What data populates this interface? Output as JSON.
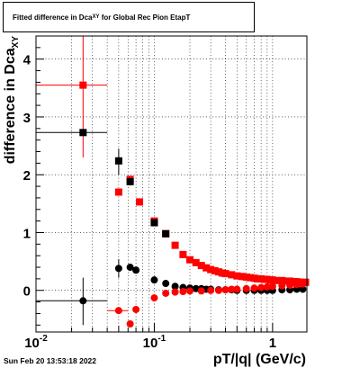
{
  "chart_data": {
    "type": "scatter",
    "title": {
      "main": "Fitted difference in Dca",
      "sub": "XY",
      "rest": " for Global Rec Pion EtapT"
    },
    "xlabel": "pT/|q| (GeV/c)",
    "ylabel": {
      "main": "difference in Dca",
      "sub": "XY"
    },
    "xscale": "log",
    "xlim": [
      0.01,
      1.95
    ],
    "ylim": [
      -0.72,
      4.4
    ],
    "x_ticks": [
      {
        "value": 0.01,
        "label": "10",
        "exp": "-2"
      },
      {
        "value": 0.1,
        "label": "10",
        "exp": "-1"
      },
      {
        "value": 1,
        "label": "1",
        "exp": ""
      }
    ],
    "y_ticks": [
      {
        "value": 0,
        "label": "0"
      },
      {
        "value": 1,
        "label": "1"
      },
      {
        "value": 2,
        "label": "2"
      },
      {
        "value": 3,
        "label": "3"
      },
      {
        "value": 4,
        "label": "4"
      }
    ],
    "grid": true,
    "series": [
      {
        "color": "#ff0000",
        "marker": "square",
        "points": [
          {
            "x": 0.025,
            "y": 3.55,
            "xlo": 0.01,
            "xhi": 0.04,
            "ylo": 2.3,
            "yhi": 4.4
          },
          {
            "x": 0.05,
            "y": 1.7
          },
          {
            "x": 0.0625,
            "y": 1.92
          },
          {
            "x": 0.075,
            "y": 1.53
          },
          {
            "x": 0.1,
            "y": 1.2
          },
          {
            "x": 0.125,
            "y": 0.98
          },
          {
            "x": 0.15,
            "y": 0.78
          },
          {
            "x": 0.175,
            "y": 0.62
          },
          {
            "x": 0.2,
            "y": 0.53
          },
          {
            "x": 0.225,
            "y": 0.48
          },
          {
            "x": 0.25,
            "y": 0.43
          },
          {
            "x": 0.275,
            "y": 0.39
          },
          {
            "x": 0.3,
            "y": 0.36
          },
          {
            "x": 0.325,
            "y": 0.34
          },
          {
            "x": 0.35,
            "y": 0.32
          },
          {
            "x": 0.375,
            "y": 0.3
          },
          {
            "x": 0.4,
            "y": 0.29
          },
          {
            "x": 0.45,
            "y": 0.27
          },
          {
            "x": 0.5,
            "y": 0.25
          },
          {
            "x": 0.55,
            "y": 0.24
          },
          {
            "x": 0.6,
            "y": 0.23
          },
          {
            "x": 0.65,
            "y": 0.22
          },
          {
            "x": 0.7,
            "y": 0.21
          },
          {
            "x": 0.75,
            "y": 0.2
          },
          {
            "x": 0.8,
            "y": 0.2
          },
          {
            "x": 0.85,
            "y": 0.19
          },
          {
            "x": 0.9,
            "y": 0.19
          },
          {
            "x": 0.95,
            "y": 0.18
          },
          {
            "x": 1.0,
            "y": 0.18
          },
          {
            "x": 1.1,
            "y": 0.17
          },
          {
            "x": 1.2,
            "y": 0.17
          },
          {
            "x": 1.3,
            "y": 0.16
          },
          {
            "x": 1.4,
            "y": 0.16
          },
          {
            "x": 1.5,
            "y": 0.15
          },
          {
            "x": 1.6,
            "y": 0.15
          },
          {
            "x": 1.7,
            "y": 0.14
          },
          {
            "x": 1.8,
            "y": 0.14
          },
          {
            "x": 1.9,
            "y": 0.14
          }
        ]
      },
      {
        "color": "#000000",
        "marker": "square",
        "points": [
          {
            "x": 0.025,
            "y": 2.73,
            "xlo": 0.01,
            "xhi": 0.04
          },
          {
            "x": 0.05,
            "y": 2.24,
            "ylo": 2.0,
            "yhi": 2.45
          },
          {
            "x": 0.0625,
            "y": 1.88
          },
          {
            "x": 0.1,
            "y": 1.17
          },
          {
            "x": 0.125,
            "y": 0.98
          }
        ]
      },
      {
        "color": "#000000",
        "marker": "circle",
        "points": [
          {
            "x": 0.025,
            "y": -0.18,
            "xlo": 0.01,
            "xhi": 0.04,
            "ylo": -0.6,
            "yhi": 0.22
          },
          {
            "x": 0.05,
            "y": 0.38,
            "ylo": 0.22,
            "yhi": 0.54
          },
          {
            "x": 0.0625,
            "y": 0.4
          },
          {
            "x": 0.07,
            "y": 0.35
          },
          {
            "x": 0.1,
            "y": 0.18
          },
          {
            "x": 0.125,
            "y": 0.12
          },
          {
            "x": 0.15,
            "y": 0.07
          },
          {
            "x": 0.175,
            "y": 0.05
          },
          {
            "x": 0.2,
            "y": 0.04
          },
          {
            "x": 0.225,
            "y": 0.03
          },
          {
            "x": 0.25,
            "y": 0.03
          },
          {
            "x": 0.275,
            "y": 0.02
          },
          {
            "x": 0.3,
            "y": 0.02
          },
          {
            "x": 0.35,
            "y": 0.01
          },
          {
            "x": 0.4,
            "y": 0.01
          },
          {
            "x": 0.45,
            "y": 0.01
          },
          {
            "x": 0.5,
            "y": 0.0
          },
          {
            "x": 0.6,
            "y": 0.0
          },
          {
            "x": 0.7,
            "y": 0.0
          },
          {
            "x": 0.8,
            "y": 0.0
          },
          {
            "x": 0.9,
            "y": 0.0
          },
          {
            "x": 1.0,
            "y": 0.0
          },
          {
            "x": 1.2,
            "y": 0.01
          },
          {
            "x": 1.4,
            "y": 0.01
          },
          {
            "x": 1.6,
            "y": 0.02
          },
          {
            "x": 1.8,
            "y": 0.02
          }
        ]
      },
      {
        "color": "#ff0000",
        "marker": "circle",
        "points": [
          {
            "x": 0.05,
            "y": -0.35,
            "xlo": 0.04,
            "xhi": 0.06
          },
          {
            "x": 0.0625,
            "y": -0.58
          },
          {
            "x": 0.07,
            "y": -0.33
          },
          {
            "x": 0.1,
            "y": -0.13
          },
          {
            "x": 0.125,
            "y": -0.05
          },
          {
            "x": 0.15,
            "y": -0.03
          },
          {
            "x": 0.175,
            "y": -0.02
          },
          {
            "x": 0.2,
            "y": -0.01
          },
          {
            "x": 0.25,
            "y": -0.01
          },
          {
            "x": 0.3,
            "y": 0.0
          },
          {
            "x": 0.35,
            "y": 0.0
          },
          {
            "x": 0.4,
            "y": 0.01
          },
          {
            "x": 0.45,
            "y": 0.02
          },
          {
            "x": 0.5,
            "y": 0.02
          },
          {
            "x": 0.6,
            "y": 0.03
          },
          {
            "x": 0.7,
            "y": 0.04
          },
          {
            "x": 0.8,
            "y": 0.05
          },
          {
            "x": 0.9,
            "y": 0.06
          },
          {
            "x": 1.0,
            "y": 0.07
          },
          {
            "x": 1.2,
            "y": 0.08
          },
          {
            "x": 1.4,
            "y": 0.09
          },
          {
            "x": 1.6,
            "y": 0.1
          },
          {
            "x": 1.8,
            "y": 0.11
          }
        ]
      }
    ]
  },
  "footer": {
    "date": "Sun Feb 20 13:53:18 2022"
  }
}
